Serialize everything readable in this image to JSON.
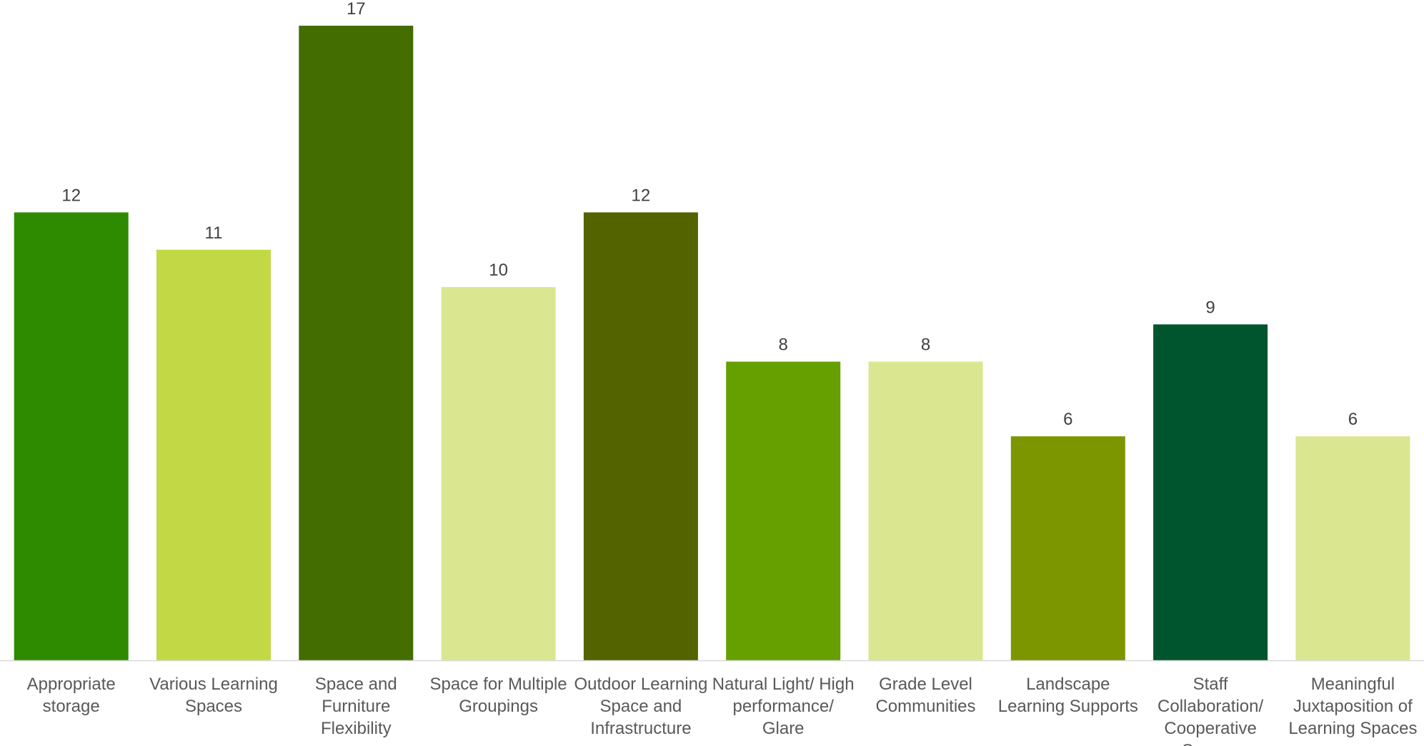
{
  "chart_data": {
    "type": "bar",
    "title": "",
    "xlabel": "",
    "ylabel": "",
    "ylim": [
      0,
      17
    ],
    "grid": false,
    "legend": "none",
    "categories": [
      "Appropriate storage",
      "Various Learning Spaces",
      "Space and Furniture Flexibility",
      "Space for Multiple Groupings",
      "Outdoor Learning Space and Infrastructure",
      "Natural Light/ High performance/ Glare",
      "Grade Level Communities",
      "Landscape Learning Supports",
      "Staff Collaboration/ Cooperative Spaces",
      "Meaningful Juxtaposition of Learning Spaces"
    ],
    "category_lines": [
      [
        "Appropriate",
        "storage"
      ],
      [
        "Various Learning",
        "Spaces"
      ],
      [
        "Space and",
        "Furniture",
        "Flexibility"
      ],
      [
        "Space for Multiple",
        "Groupings"
      ],
      [
        "Outdoor Learning",
        "Space and",
        "Infrastructure"
      ],
      [
        "Natural Light/ High",
        "performance/",
        "Glare"
      ],
      [
        "Grade Level",
        "Communities"
      ],
      [
        "Landscape",
        "Learning Supports"
      ],
      [
        "Staff",
        "Collaboration/",
        "Cooperative",
        "Spaces"
      ],
      [
        "Meaningful",
        "Juxtaposition of",
        "Learning Spaces"
      ]
    ],
    "values": [
      12,
      11,
      17,
      10,
      12,
      8,
      8,
      6,
      9,
      6
    ],
    "data_labels": [
      "12",
      "11",
      "17",
      "10",
      "12",
      "8",
      "8",
      "6",
      "9",
      "6"
    ],
    "colors": [
      "#2E8B00",
      "#C2D945",
      "#446D00",
      "#DBE790",
      "#526300",
      "#66A000",
      "#DBE790",
      "#7C9600",
      "#00552F",
      "#DBE790"
    ]
  }
}
